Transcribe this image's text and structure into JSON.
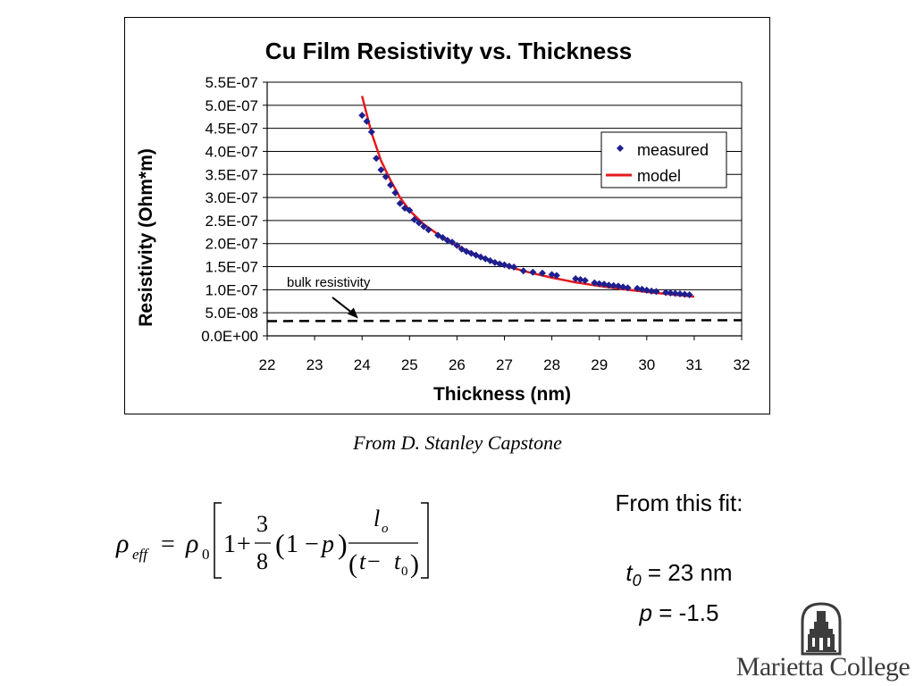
{
  "chart_data": {
    "type": "scatter",
    "title": "Cu Film Resistivity vs. Thickness",
    "xlabel": "Thickness (nm)",
    "ylabel": "Resistivity (Ohm*m)",
    "xlim": [
      22,
      32
    ],
    "ylim": [
      0,
      5.5e-07
    ],
    "x_ticks": [
      "22",
      "23",
      "24",
      "25",
      "26",
      "27",
      "28",
      "29",
      "30",
      "31",
      "32"
    ],
    "y_ticks": [
      "0.0E+00",
      "5.0E-08",
      "1.0E-07",
      "1.5E-07",
      "2.0E-07",
      "2.5E-07",
      "3.0E-07",
      "3.5E-07",
      "4.0E-07",
      "4.5E-07",
      "5.0E-07",
      "5.5E-07"
    ],
    "grid": "horizontal",
    "legend": "top-right",
    "series": [
      {
        "name": "measured",
        "kind": "scatter",
        "color": "#1f1f8f",
        "points": [
          [
            24.0,
            4.78e-07
          ],
          [
            24.1,
            4.65e-07
          ],
          [
            24.2,
            4.42e-07
          ],
          [
            24.3,
            3.85e-07
          ],
          [
            24.4,
            3.6e-07
          ],
          [
            24.5,
            3.45e-07
          ],
          [
            24.6,
            3.27e-07
          ],
          [
            24.7,
            3.1e-07
          ],
          [
            24.8,
            2.87e-07
          ],
          [
            24.9,
            2.77e-07
          ],
          [
            25.0,
            2.72e-07
          ],
          [
            25.1,
            2.52e-07
          ],
          [
            25.2,
            2.45e-07
          ],
          [
            25.3,
            2.37e-07
          ],
          [
            25.4,
            2.3e-07
          ],
          [
            25.6,
            2.18e-07
          ],
          [
            25.7,
            2.13e-07
          ],
          [
            25.8,
            2.07e-07
          ],
          [
            25.9,
            2.03e-07
          ],
          [
            26.0,
            1.96e-07
          ],
          [
            26.1,
            1.88e-07
          ],
          [
            26.2,
            1.83e-07
          ],
          [
            26.3,
            1.79e-07
          ],
          [
            26.4,
            1.75e-07
          ],
          [
            26.5,
            1.71e-07
          ],
          [
            26.6,
            1.67e-07
          ],
          [
            26.7,
            1.63e-07
          ],
          [
            26.8,
            1.59e-07
          ],
          [
            26.9,
            1.56e-07
          ],
          [
            27.0,
            1.54e-07
          ],
          [
            27.1,
            1.51e-07
          ],
          [
            27.2,
            1.49e-07
          ],
          [
            27.4,
            1.41e-07
          ],
          [
            27.6,
            1.38e-07
          ],
          [
            27.8,
            1.36e-07
          ],
          [
            28.0,
            1.33e-07
          ],
          [
            28.1,
            1.31e-07
          ],
          [
            28.5,
            1.24e-07
          ],
          [
            28.6,
            1.22e-07
          ],
          [
            28.7,
            1.2e-07
          ],
          [
            28.9,
            1.15e-07
          ],
          [
            29.0,
            1.13e-07
          ],
          [
            29.1,
            1.12e-07
          ],
          [
            29.2,
            1.1e-07
          ],
          [
            29.3,
            1.09e-07
          ],
          [
            29.4,
            1.08e-07
          ],
          [
            29.5,
            1.06e-07
          ],
          [
            29.6,
            1.04e-07
          ],
          [
            29.8,
            1.03e-07
          ],
          [
            29.9,
            1.01e-07
          ],
          [
            30.0,
            9.9e-08
          ],
          [
            30.1,
            9.7e-08
          ],
          [
            30.2,
            9.6e-08
          ],
          [
            30.4,
            9.4e-08
          ],
          [
            30.5,
            9.3e-08
          ],
          [
            30.6,
            9.2e-08
          ],
          [
            30.7,
            9.1e-08
          ],
          [
            30.8,
            9e-08
          ],
          [
            30.9,
            8.9e-08
          ]
        ]
      },
      {
        "name": "model",
        "kind": "line",
        "color": "#e41a1c",
        "points": [
          [
            24.0,
            5.2e-07
          ],
          [
            24.2,
            4.4e-07
          ],
          [
            24.4,
            3.8e-07
          ],
          [
            24.6,
            3.37e-07
          ],
          [
            24.8,
            3e-07
          ],
          [
            25.0,
            2.72e-07
          ],
          [
            25.3,
            2.42e-07
          ],
          [
            25.6,
            2.2e-07
          ],
          [
            26.0,
            1.95e-07
          ],
          [
            26.5,
            1.71e-07
          ],
          [
            27.0,
            1.52e-07
          ],
          [
            27.5,
            1.38e-07
          ],
          [
            28.0,
            1.26e-07
          ],
          [
            28.5,
            1.16e-07
          ],
          [
            29.0,
            1.08e-07
          ],
          [
            29.5,
            1.01e-07
          ],
          [
            30.0,
            9.5e-08
          ],
          [
            30.5,
            9e-08
          ],
          [
            31.0,
            8.5e-08
          ]
        ]
      },
      {
        "name": "bulk resistivity",
        "kind": "reference-line",
        "color": "#000000",
        "points": [
          [
            22,
            3.2e-08
          ],
          [
            32,
            3.4e-08
          ]
        ]
      }
    ],
    "annotations": [
      {
        "text": "bulk resistivity",
        "target": [
          23.9,
          3.4e-08
        ]
      }
    ]
  },
  "credit": "From D. Stanley Capstone",
  "formula": {
    "lhs_symbol": "ρ",
    "lhs_sub": "eff",
    "equals": "=",
    "rho0_symbol": "ρ",
    "rho0_sub": "0",
    "one": "1",
    "plus": "+",
    "frac_num": "3",
    "frac_den": "8",
    "open_paren": "(",
    "one_minus": "1 − ",
    "p": "p",
    "close_paren": ")",
    "lo_symbol": "l",
    "lo_sub": "o",
    "t": "t",
    "minus": " − ",
    "t0_symbol": "t",
    "t0_sub": "0"
  },
  "fit": {
    "title": "From this fit:",
    "t0_var": "t",
    "t0_sub": "0",
    "t0_value": " = 23 nm",
    "p_var": "p",
    "p_value": " = -1.5"
  },
  "logo": {
    "text": "Marietta College",
    "icon": "college-tower-icon"
  }
}
